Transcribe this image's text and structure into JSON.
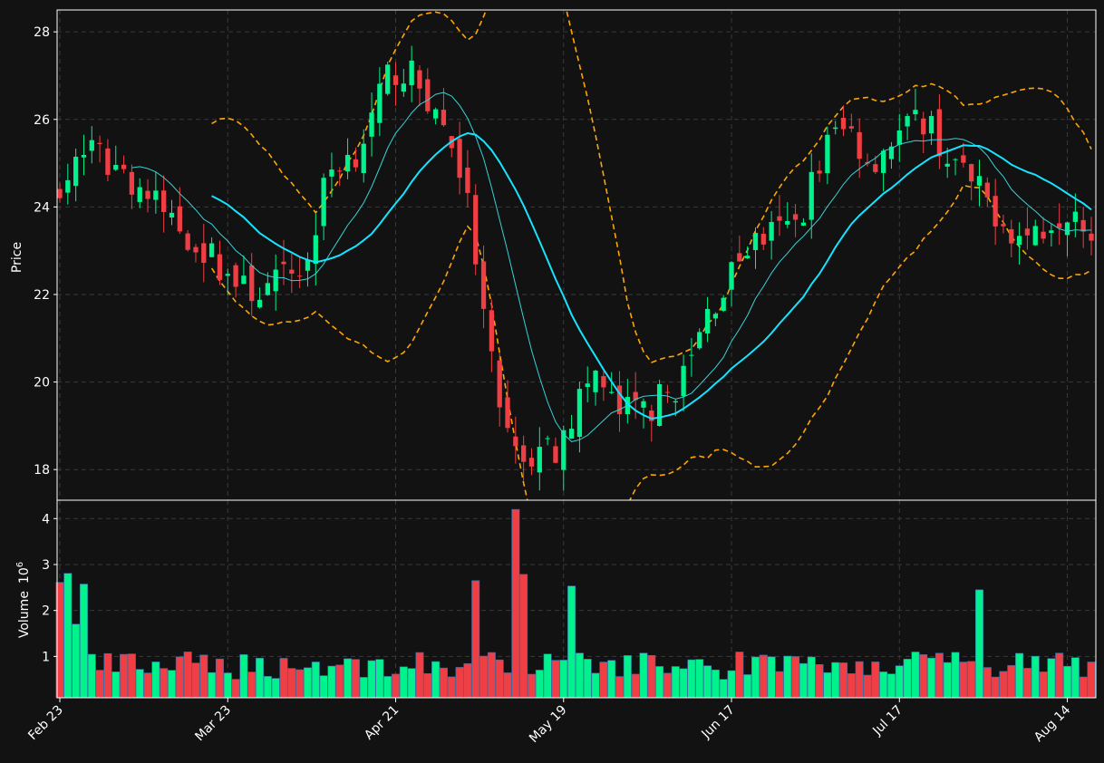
{
  "colors": {
    "background": "#121212",
    "up": "#00f28c",
    "down": "#ef3f45",
    "ma_fast": "#37d2d6",
    "ma_slow": "#17e3ff",
    "bands": "#ffa500",
    "grid": "#3a3a3a",
    "frame": "#ffffff"
  },
  "chart_data": [
    {
      "type": "candlestick",
      "ylabel": "Price",
      "ylim": [
        17.3,
        28.5
      ],
      "yticks": [
        "18",
        "20",
        "22",
        "24",
        "26",
        "28"
      ],
      "xticks": [
        "Feb 23",
        "Mar 23",
        "Apr 21",
        "May 19",
        "Jun 17",
        "Jul 17",
        "Aug 14"
      ],
      "grid": true,
      "series": [
        {
          "type": "candles"
        },
        {
          "type": "line",
          "style": "thin"
        },
        {
          "type": "line",
          "style": "thick"
        },
        {
          "type": "band",
          "style": "dashed"
        }
      ]
    },
    {
      "type": "bar",
      "ylabel": "Volume",
      "yunit": "10",
      "yunit_exp": "6",
      "ylim": [
        0.1,
        4.4
      ],
      "yticks": [
        "1",
        "2",
        "3",
        "4"
      ],
      "grid": true
    }
  ]
}
